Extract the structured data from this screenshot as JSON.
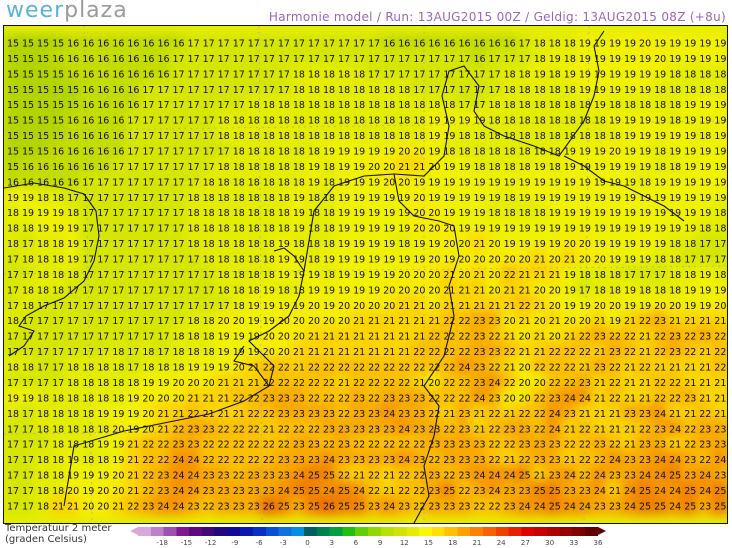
{
  "header": {
    "logo_part1": "weer",
    "logo_part2": "plaza",
    "title": "Harmonie model / Run: 13AUG2015 00Z / Geldig: 13AUG2015 08Z (+8u)"
  },
  "legend": {
    "label_line1": "Temperatuur 2 meter",
    "label_line2": "(graden Celsius)",
    "ticks": [
      "-18",
      "-15",
      "-12",
      "-9",
      "-6",
      "-3",
      "0",
      "3",
      "6",
      "9",
      "12",
      "15",
      "18",
      "21",
      "24",
      "27",
      "30",
      "33",
      "36"
    ],
    "colors": [
      "#d8a8d8",
      "#c080c8",
      "#a050b0",
      "#801890",
      "#600880",
      "#400878",
      "#200880",
      "#100898",
      "#0818b0",
      "#0830c8",
      "#0850d8",
      "#1070e0",
      "#0090e8",
      "#006060",
      "#008050",
      "#00a040",
      "#20c010",
      "#60d000",
      "#90d800",
      "#b8e000",
      "#d0e400",
      "#e4ec00",
      "#f8f800",
      "#ffe000",
      "#ffc000",
      "#ffa000",
      "#ff8000",
      "#f86000",
      "#f04000",
      "#e82000",
      "#e00000",
      "#c80000",
      "#b00000",
      "#980000",
      "#800000",
      "#600000"
    ]
  },
  "value_colors": {
    "15": "#b4d400",
    "16": "#c4dc00",
    "17": "#d6e600",
    "18": "#e4ec00",
    "19": "#f0f200",
    "20": "#f8ec00",
    "21": "#fcd400",
    "22": "#fbc000",
    "23": "#f8aa00",
    "24": "#f59400",
    "25": "#f08000",
    "26": "#ec6c00"
  },
  "map_rows": [
    "15 15 15 15 16 16 16 16 16 16 16 16 17 17 17 17 17 17 17 17 17 17 17 17 17 16 16 16 16 16 16 16 16 16 17 18 18 18 19 19 19 19 20 19 19 19 19 19",
    "15 15 15 16 16 16 16 16 16 16 16 17 17 17 17 17 17 17 17 17 17 17 17 17 17 17 17 17 17 17 17 16 17 17 17 18 19 18 19 19 19 19 19 20 19 19 19 19",
    "15 15 15 15 16 16 16 16 16 16 16 17 17 17 17 17 17 17 17 18 18 18 18 18 17 17 17 17 17 17 17 17 17 18 18 19 18 19 19 19 19 19 19 19 18 18 18 18",
    "15 15 15 15 15 16 16 16 16 17 17 17 17 17 17 17 17 17 17 18 18 18 18 18 18 18 18 17 17 17 17 17 17 18 18 18 18 18 19 19 19 19 19 18 18 18 18 18",
    "15 15 15 15 15 16 16 16 16 17 17 17 17 17 17 17 18 18 18 18 18 18 18 18 18 18 18 18 18 18 17 17 18 18 18 18 18 18 18 19 18 18 18 18 18 19 19 19",
    "15 15 15 15 16 16 16 16 17 17 17 17 17 17 18 18 18 18 18 18 18 18 18 18 18 18 18 18 19 19 19 19 18 18 18 18 18 18 18 18 19 19 19 19 18 19 19 19",
    "15 15 15 15 16 16 16 16 17 17 17 17 17 17 18 18 18 18 18 18 18 18 18 18 18 18 18 18 19 19 18 18 18 18 18 18 18 18 18 18 18 19 19 19 19 19 18 19",
    "15 15 15 16 16 16 16 16 17 17 17 17 17 17 17 18 18 18 18 18 18 19 19 19 19 19 20 20 19 18 18 18 18 18 18 18 18 19 19 19 20 19 19 18 19 19 19 19",
    "15 16 16 16 16 16 16 17 17 17 17 17 17 17 18 18 18 18 18 18 19 18 19 19 20 20 21 21 20 19 19 18 18 18 18 19 18 19 19 19 19 19 19 18 18 19 19 19",
    "16 16 16 16 16 17 17 17 17 17 17 17 17 18 18 18 18 18 18 18 19 18 19 19 19 20 20 19 19 19 19 19 19 19 19 19 19 19 19 19 19 19 18 19 19 19 19 19",
    "19 19 18 18 17 17 17 17 17 17 17 17 18 18 18 18 18 18 18 19 18 18 19 19 19 19 19 20 19 19 19 19 19 18 19 19 19 19 19 19 19 19 19 19 19 19 19 19",
    "18 19 19 19 18 17 17 17 17 17 17 17 18 18 18 18 18 18 18 19 18 18 19 19 19 19 19 20 20 19 19 19 18 18 18 18 19 19 19 19 19 19 19 19 19 19 19 18",
    "18 18 19 19 19 17 17 17 17 17 17 17 18 18 18 18 18 18 18 19 18 18 19 19 19 19 19 20 20 20 19 19 19 19 19 19 19 19 19 19 19 19 19 19 19 19 18 18",
    "18 17 18 18 19 17 17 17 17 17 17 17 18 18 18 18 18 18 19 18 18 18 19 19 19 19 18 19 19 20 20 21 20 19 19 19 19 20 20 19 19 19 19 19 18 18 17 17",
    "17 18 18 18 19 17 17 17 17 17 17 17 17 18 18 18 18 18 19 19 18 19 19 19 19 19 19 19 20 19 20 20 20 20 20 21 20 21 20 20 19 19 19 18 18 17 17 17",
    "17 17 18 18 18 17 17 17 17 17 17 17 17 17 18 18 18 18 19 19 19 18 19 19 19 19 20 20 20 21 20 21 20 22 21 21 21 19 18 18 18 17 17 17 18 18 19 18",
    "17 18 18 18 17 17 17 17 17 17 17 17 17 17 18 18 18 19 18 18 19 19 19 19 19 20 20 20 20 21 21 21 20 21 21 20 20 19 17 18 18 19 18 18 18 19 19 19",
    "17 18 17 17 17 17 17 17 17 17 17 17 17 17 17 18 19 19 19 19 20 19 20 20 20 20 21 21 20 21 21 21 21 21 22 21 20 19 19 20 20 19 19 20 20 19 19 20",
    "18 17 17 17 17 17 17 17 17 17 17 17 18 18 20 20 19 19 20 20 20 20 20 21 21 21 21 21 21 22 22 23 23 20 21 20 21 20 20 21 19 21 22 23 21 21 21 21",
    "17 17 17 17 17 17 17 17 17 17 17 18 18 18 19 19 19 20 20 20 21 21 21 21 21 21 21 21 22 22 22 23 22 21 20 21 20 21 22 23 22 22 21 22 23 22 23 22",
    "17 17 17 17 17 17 17 18 17 18 17 18 18 18 19 19 19 20 20 21 21 21 21 21 21 21 21 22 22 22 22 23 23 22 21 21 22 22 22 21 23 22 21 22 23 22 21 22",
    "18 18 17 17 18 18 18 18 17 18 18 18 19 19 19 20 21 22 22 21 22 22 22 22 22 22 22 22 22 22 24 23 22 21 20 22 22 22 21 23 22 21 22 21 21 21 21 22",
    "17 17 17 17 18 18 18 18 18 19 19 20 20 20 21 21 21 22 22 22 22 22 21 22 22 22 22 21 20 22 22 23 24 22 20 20 22 22 23 21 22 21 21 22 22 21 21 21",
    "19 19 18 18 18 18 18 18 19 20 20 20 21 21 21 22 22 23 23 23 22 22 22 23 22 23 23 23 22 22 22 24 23 20 20 22 23 24 24 21 22 21 21 22 22 23 21 21",
    "18 17 18 18 18 18 19 19 19 20 21 21 22 21 21 21 22 22 23 23 23 23 22 23 23 24 23 23 22 21 23 21 22 21 22 22 24 23 21 21 21 23 23 24 21 21 22 21",
    "17 17 18 18 18 18 18 20 19 20 21 22 23 23 22 22 22 21 22 22 22 23 23 23 23 23 24 23 23 22 23 21 22 23 23 22 24 21 22 21 21 21 22 23 24 22 23 23",
    "17 17 17 18 18 18 19 19 21 22 22 23 23 22 22 22 22 22 22 23 23 22 23 22 22 22 22 22 23 23 23 23 22 22 23 23 23 22 22 23 22 21 23 23 21 22 23 23",
    "17 17 18 18 19 18 18 19 21 22 22 24 24 22 22 22 22 22 23 23 23 24 23 23 23 23 24 23 22 23 23 23 22 21 22 23 23 21 22 22 24 23 23 24 24 23 22 24",
    "17 17 18 18 19 19 19 20 21 22 23 24 24 23 23 22 23 23 23 24 25 25 22 21 22 21 22 22 23 22 23 24 24 24 25 21 23 24 22 24 23 23 24 24 25 23 24 23",
    "17 17 18 18 20 19 20 20 21 22 23 24 24 23 23 23 23 23 24 25 25 24 25 24 22 21 22 22 23 25 22 23 24 23 23 25 25 23 23 24 21 24 25 24 24 25 24 25",
    "17 17 18 21 21 20 20 21 22 23 24 24 23 22 23 23 23 26 25 23 25 26 25 25 23 24 23 22 23 23 23 22 22 23 24 24 25 24 24 23 23 24 25 25 24 25 23 25"
  ]
}
